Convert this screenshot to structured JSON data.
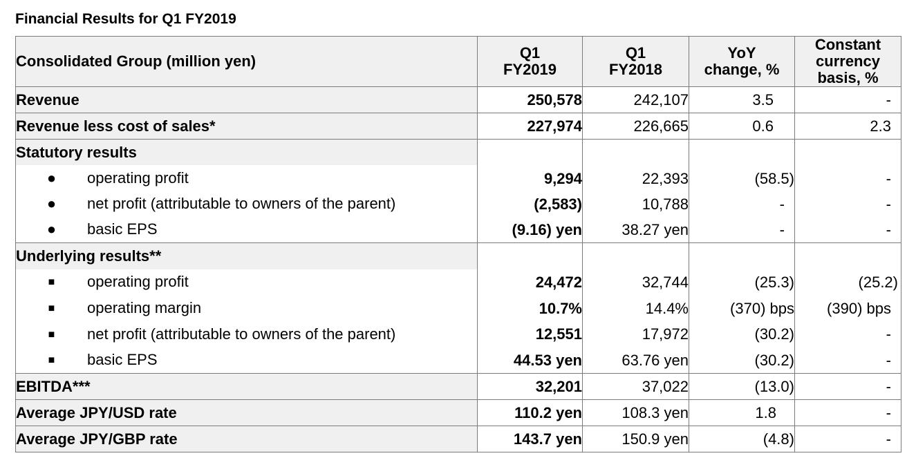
{
  "title": "Financial Results for Q1 FY2019",
  "headers": {
    "label": "Consolidated Group (million yen)",
    "q1_2019": "Q1\nFY2019",
    "q1_2018": "Q1\nFY2018",
    "yoy": "YoY\nchange, %",
    "ccy": "Constant\ncurrency\nbasis, %"
  },
  "rows": {
    "revenue": {
      "label": "Revenue",
      "v2019": "250,578",
      "v2018": "242,107",
      "yoy": "3.5",
      "ccy": "-"
    },
    "rlcos": {
      "label": "Revenue less cost of sales*",
      "v2019": "227,974",
      "v2018": "226,665",
      "yoy": "0.6",
      "ccy": "2.3"
    },
    "statutory": {
      "label": "Statutory results",
      "bullet": "●",
      "items": [
        {
          "label": "operating profit",
          "v2019": "9,294",
          "v2018": "22,393",
          "yoy": "(58.5)",
          "ccy": "-"
        },
        {
          "label": "net profit (attributable to owners of the parent)",
          "v2019": "(2,583)",
          "v2018": "10,788",
          "yoy": "-",
          "ccy": "-"
        },
        {
          "label": "basic EPS",
          "v2019": "(9.16) yen",
          "v2018": "38.27 yen",
          "yoy": "-",
          "ccy": "-"
        }
      ]
    },
    "underlying": {
      "label": "Underlying results**",
      "bullet": "■",
      "items": [
        {
          "label": "operating profit",
          "v2019": "24,472",
          "v2018": "32,744",
          "yoy": "(25.3)",
          "ccy": "(25.2)"
        },
        {
          "label": "operating margin",
          "v2019": "10.7%",
          "v2018": "14.4%",
          "yoy": "(370) bps",
          "ccy": "(390) bps"
        },
        {
          "label": "net profit (attributable to owners of the parent)",
          "v2019": "12,551",
          "v2018": "17,972",
          "yoy": "(30.2)",
          "ccy": "-"
        },
        {
          "label": "basic EPS",
          "v2019": "44.53 yen",
          "v2018": "63.76 yen",
          "yoy": "(30.2)",
          "ccy": "-"
        }
      ]
    },
    "ebitda": {
      "label": "EBITDA***",
      "v2019": "32,201",
      "v2018": "37,022",
      "yoy": "(13.0)",
      "ccy": "-"
    },
    "usd": {
      "label": "Average JPY/USD rate",
      "v2019": "110.2 yen",
      "v2018": "108.3 yen",
      "yoy": "1.8",
      "ccy": "-"
    },
    "gbp": {
      "label": "Average JPY/GBP rate",
      "v2019": "143.7 yen",
      "v2018": "150.9 yen",
      "yoy": "(4.8)",
      "ccy": "-"
    }
  }
}
